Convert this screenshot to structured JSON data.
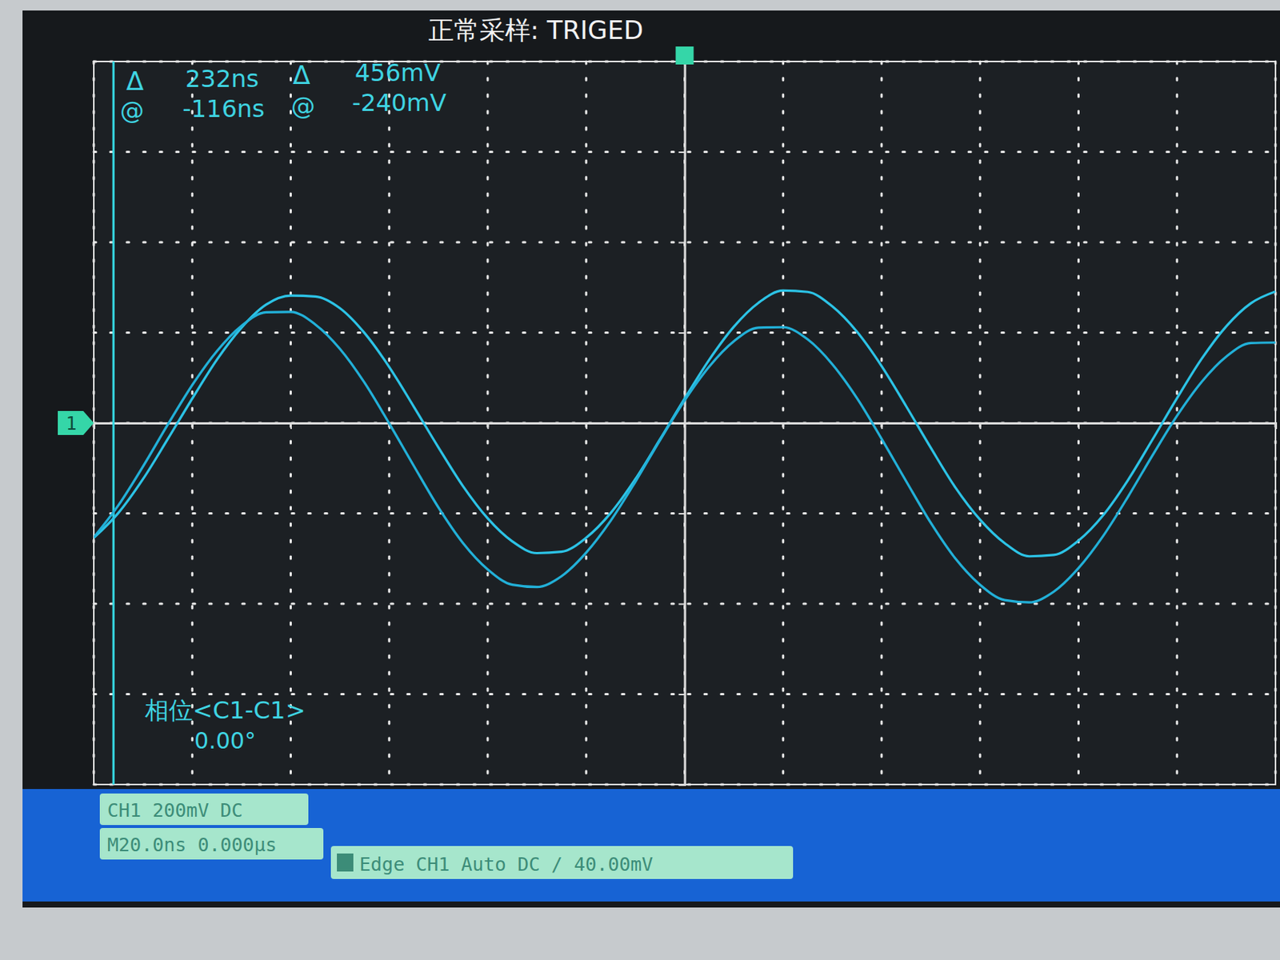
{
  "chart_data": {
    "type": "line",
    "title": "正常采样: TRIGED",
    "x": [
      -120,
      -115,
      -110,
      -105,
      -100,
      -95,
      -90,
      -85,
      -80,
      -75,
      -70,
      -65,
      -60,
      -55,
      -50,
      -45,
      -40,
      -35,
      -30,
      -25,
      -20,
      -15,
      -10,
      -5,
      0,
      5,
      10,
      15,
      20,
      25,
      30,
      35,
      40,
      45,
      50,
      55,
      60,
      65,
      70,
      75,
      80,
      85,
      90,
      95,
      100,
      105,
      110,
      115,
      120
    ],
    "series": [
      {
        "color": "#2cc3e6",
        "values": [
          -254,
          -199,
          -124,
          -36,
          54,
          140,
          211,
          262,
          282,
          280,
          254,
          199,
          124,
          36,
          -54,
          -140,
          -211,
          -262,
          -288,
          -285,
          -254,
          -199,
          -124,
          -36,
          54,
          140,
          213,
          266,
          293,
          290,
          258,
          202,
          126,
          37,
          -55,
          -143,
          -214,
          -266,
          -295,
          -292,
          -260,
          -204,
          -127,
          -37,
          55,
          142,
          214,
          265,
          291
        ]
      },
      {
        "color": "#22b0d8",
        "values": [
          -253,
          -182,
          -96,
          -4,
          84,
          159,
          215,
          245,
          246,
          218,
          164,
          89,
          -1,
          -95,
          -187,
          -266,
          -324,
          -358,
          -363,
          -339,
          -287,
          -216,
          -130,
          -38,
          50,
          125,
          181,
          211,
          212,
          185,
          130,
          55,
          -35,
          -129,
          -221,
          -300,
          -358,
          -392,
          -397,
          -373,
          -321,
          -250,
          -164,
          -72,
          16,
          91,
          147,
          177,
          178
        ]
      }
    ],
    "xlim": [
      -120,
      120
    ],
    "ylim": [
      -800,
      800
    ],
    "xticks": [
      -120,
      -100,
      -80,
      -60,
      -40,
      -20,
      0,
      20,
      40,
      60,
      80,
      100,
      120
    ],
    "yticks": [
      -800,
      -600,
      -400,
      -200,
      0,
      200,
      400,
      600,
      800
    ],
    "grid": true,
    "tick_labels": false,
    "cursor_x": -116,
    "channel_marker": "1",
    "annotations": [
      "Δ",
      "232ns",
      "Δ",
      "456mV",
      "@",
      "-116ns",
      "@",
      "-240mV",
      "相位<C1-C1>",
      "0.00°"
    ],
    "status": [
      "CH1 200mV DC",
      "M20.0ns 0.000μs",
      "Edge CH1 Auto DC / 40.00mV"
    ]
  }
}
